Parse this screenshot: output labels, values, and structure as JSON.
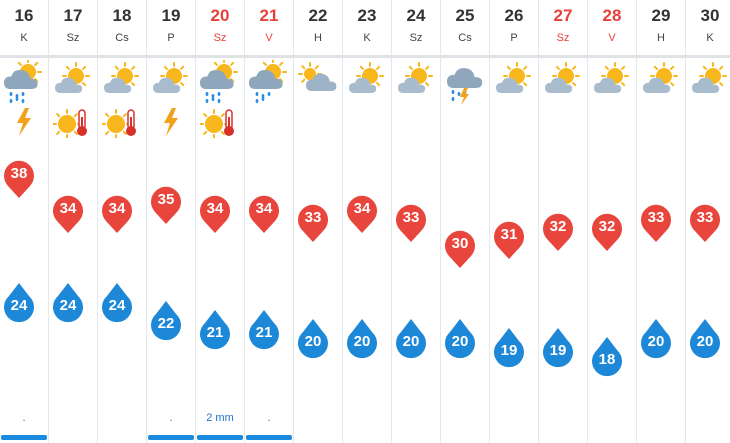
{
  "days": [
    {
      "day": "16",
      "name": "K",
      "weekend": false,
      "icon": "heavy-rain-sun-icon",
      "extra": "lightning-icon",
      "max": "38",
      "min": "24",
      "precip": ".",
      "bar": true
    },
    {
      "day": "17",
      "name": "Sz",
      "weekend": false,
      "icon": "partly-sunny-icon",
      "extra": "heat-warning-icon",
      "max": "34",
      "min": "24",
      "precip": "",
      "bar": false
    },
    {
      "day": "18",
      "name": "Cs",
      "weekend": false,
      "icon": "partly-sunny-icon",
      "extra": "heat-warning-icon",
      "max": "34",
      "min": "24",
      "precip": "",
      "bar": false
    },
    {
      "day": "19",
      "name": "P",
      "weekend": false,
      "icon": "partly-sunny-icon",
      "extra": "lightning-icon",
      "max": "35",
      "min": "22",
      "precip": ".",
      "bar": true
    },
    {
      "day": "20",
      "name": "Sz",
      "weekend": true,
      "icon": "heavy-rain-sun-icon",
      "extra": "heat-warning-icon",
      "max": "34",
      "min": "21",
      "precip": "2 mm",
      "bar": true
    },
    {
      "day": "21",
      "name": "V",
      "weekend": true,
      "icon": "rain-sun-icon",
      "extra": "",
      "max": "34",
      "min": "21",
      "precip": ".",
      "bar": true
    },
    {
      "day": "22",
      "name": "H",
      "weekend": false,
      "icon": "cloudy-sun-icon",
      "extra": "",
      "max": "33",
      "min": "20",
      "precip": "",
      "bar": false
    },
    {
      "day": "23",
      "name": "K",
      "weekend": false,
      "icon": "partly-sunny-icon",
      "extra": "",
      "max": "34",
      "min": "20",
      "precip": "",
      "bar": false
    },
    {
      "day": "24",
      "name": "Sz",
      "weekend": false,
      "icon": "partly-sunny-icon",
      "extra": "",
      "max": "33",
      "min": "20",
      "precip": "",
      "bar": false
    },
    {
      "day": "25",
      "name": "Cs",
      "weekend": false,
      "icon": "thunder-rain-icon",
      "extra": "",
      "max": "30",
      "min": "20",
      "precip": "",
      "bar": false
    },
    {
      "day": "26",
      "name": "P",
      "weekend": false,
      "icon": "partly-sunny-icon",
      "extra": "",
      "max": "31",
      "min": "19",
      "precip": "",
      "bar": false
    },
    {
      "day": "27",
      "name": "Sz",
      "weekend": true,
      "icon": "partly-sunny-icon",
      "extra": "",
      "max": "32",
      "min": "19",
      "precip": "",
      "bar": false
    },
    {
      "day": "28",
      "name": "V",
      "weekend": true,
      "icon": "partly-sunny-icon",
      "extra": "",
      "max": "32",
      "min": "18",
      "precip": "",
      "bar": false
    },
    {
      "day": "29",
      "name": "H",
      "weekend": false,
      "icon": "partly-sunny-icon",
      "extra": "",
      "max": "33",
      "min": "20",
      "precip": "",
      "bar": false
    },
    {
      "day": "30",
      "name": "K",
      "weekend": false,
      "icon": "partly-sunny-icon",
      "extra": "",
      "max": "33",
      "min": "20",
      "precip": "",
      "bar": false
    }
  ],
  "colors": {
    "max": "#e8453c",
    "min": "#1e88d8",
    "weekend": "#e8413c",
    "sun": "#f7b71d",
    "cloud": "#8fa7bd",
    "rain": "#2a8ee6"
  }
}
